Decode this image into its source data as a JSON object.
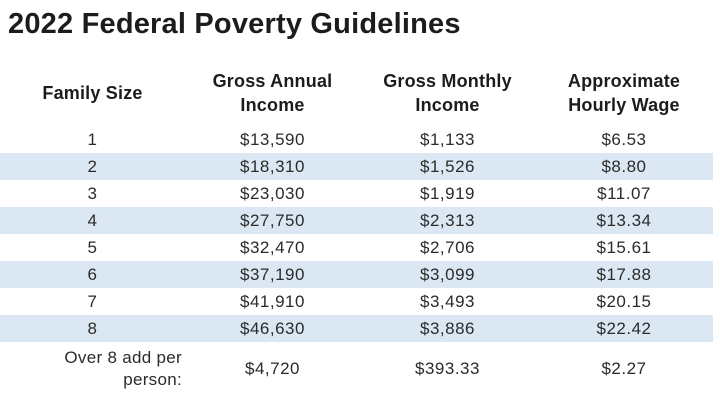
{
  "page": {
    "title": "2022 Federal Poverty Guidelines"
  },
  "accent_colors": {
    "stripe_blue": "#dbe8f4",
    "text_dark": "#212121"
  },
  "table": {
    "headers": [
      {
        "line1": "Family Size",
        "line2": ""
      },
      {
        "line1": "Gross Annual",
        "line2": "Income"
      },
      {
        "line1": "Gross Monthly",
        "line2": "Income"
      },
      {
        "line1": "Approximate",
        "line2": "Hourly Wage"
      }
    ],
    "rows": [
      [
        "1",
        "$13,590",
        "$1,133",
        "$6.53"
      ],
      [
        "2",
        "$18,310",
        "$1,526",
        "$8.80"
      ],
      [
        "3",
        "$23,030",
        "$1,919",
        "$11.07"
      ],
      [
        "4",
        "$27,750",
        "$2,313",
        "$13.34"
      ],
      [
        "5",
        "$32,470",
        "$2,706",
        "$15.61"
      ],
      [
        "6",
        "$37,190",
        "$3,099",
        "$17.88"
      ],
      [
        "7",
        "$41,910",
        "$3,493",
        "$20.15"
      ],
      [
        "8",
        "$46,630",
        "$3,886",
        "$22.42"
      ]
    ],
    "footer": {
      "label_line1": "Over 8 add per",
      "label_line2": "person:",
      "annual": "$4,720",
      "monthly": "$393.33",
      "hourly": "$2.27"
    }
  },
  "chart_data": {
    "type": "table",
    "title": "2022 Federal Poverty Guidelines",
    "columns": [
      "Family Size",
      "Gross Annual Income",
      "Gross Monthly Income",
      "Approximate Hourly Wage"
    ],
    "rows": [
      [
        "1",
        "$13,590",
        "$1,133",
        "$6.53"
      ],
      [
        "2",
        "$18,310",
        "$1,526",
        "$8.80"
      ],
      [
        "3",
        "$23,030",
        "$1,919",
        "$11.07"
      ],
      [
        "4",
        "$27,750",
        "$2,313",
        "$13.34"
      ],
      [
        "5",
        "$32,470",
        "$2,706",
        "$15.61"
      ],
      [
        "6",
        "$37,190",
        "$3,099",
        "$17.88"
      ],
      [
        "7",
        "$41,910",
        "$3,493",
        "$20.15"
      ],
      [
        "8",
        "$46,630",
        "$3,886",
        "$22.42"
      ],
      [
        "Over 8 add per person:",
        "$4,720",
        "$393.33",
        "$2.27"
      ]
    ],
    "layout_hints": {
      "striped_rows": [
        2,
        4,
        6,
        8
      ],
      "stripe_color": "#dbe8f4",
      "grid": false
    }
  }
}
